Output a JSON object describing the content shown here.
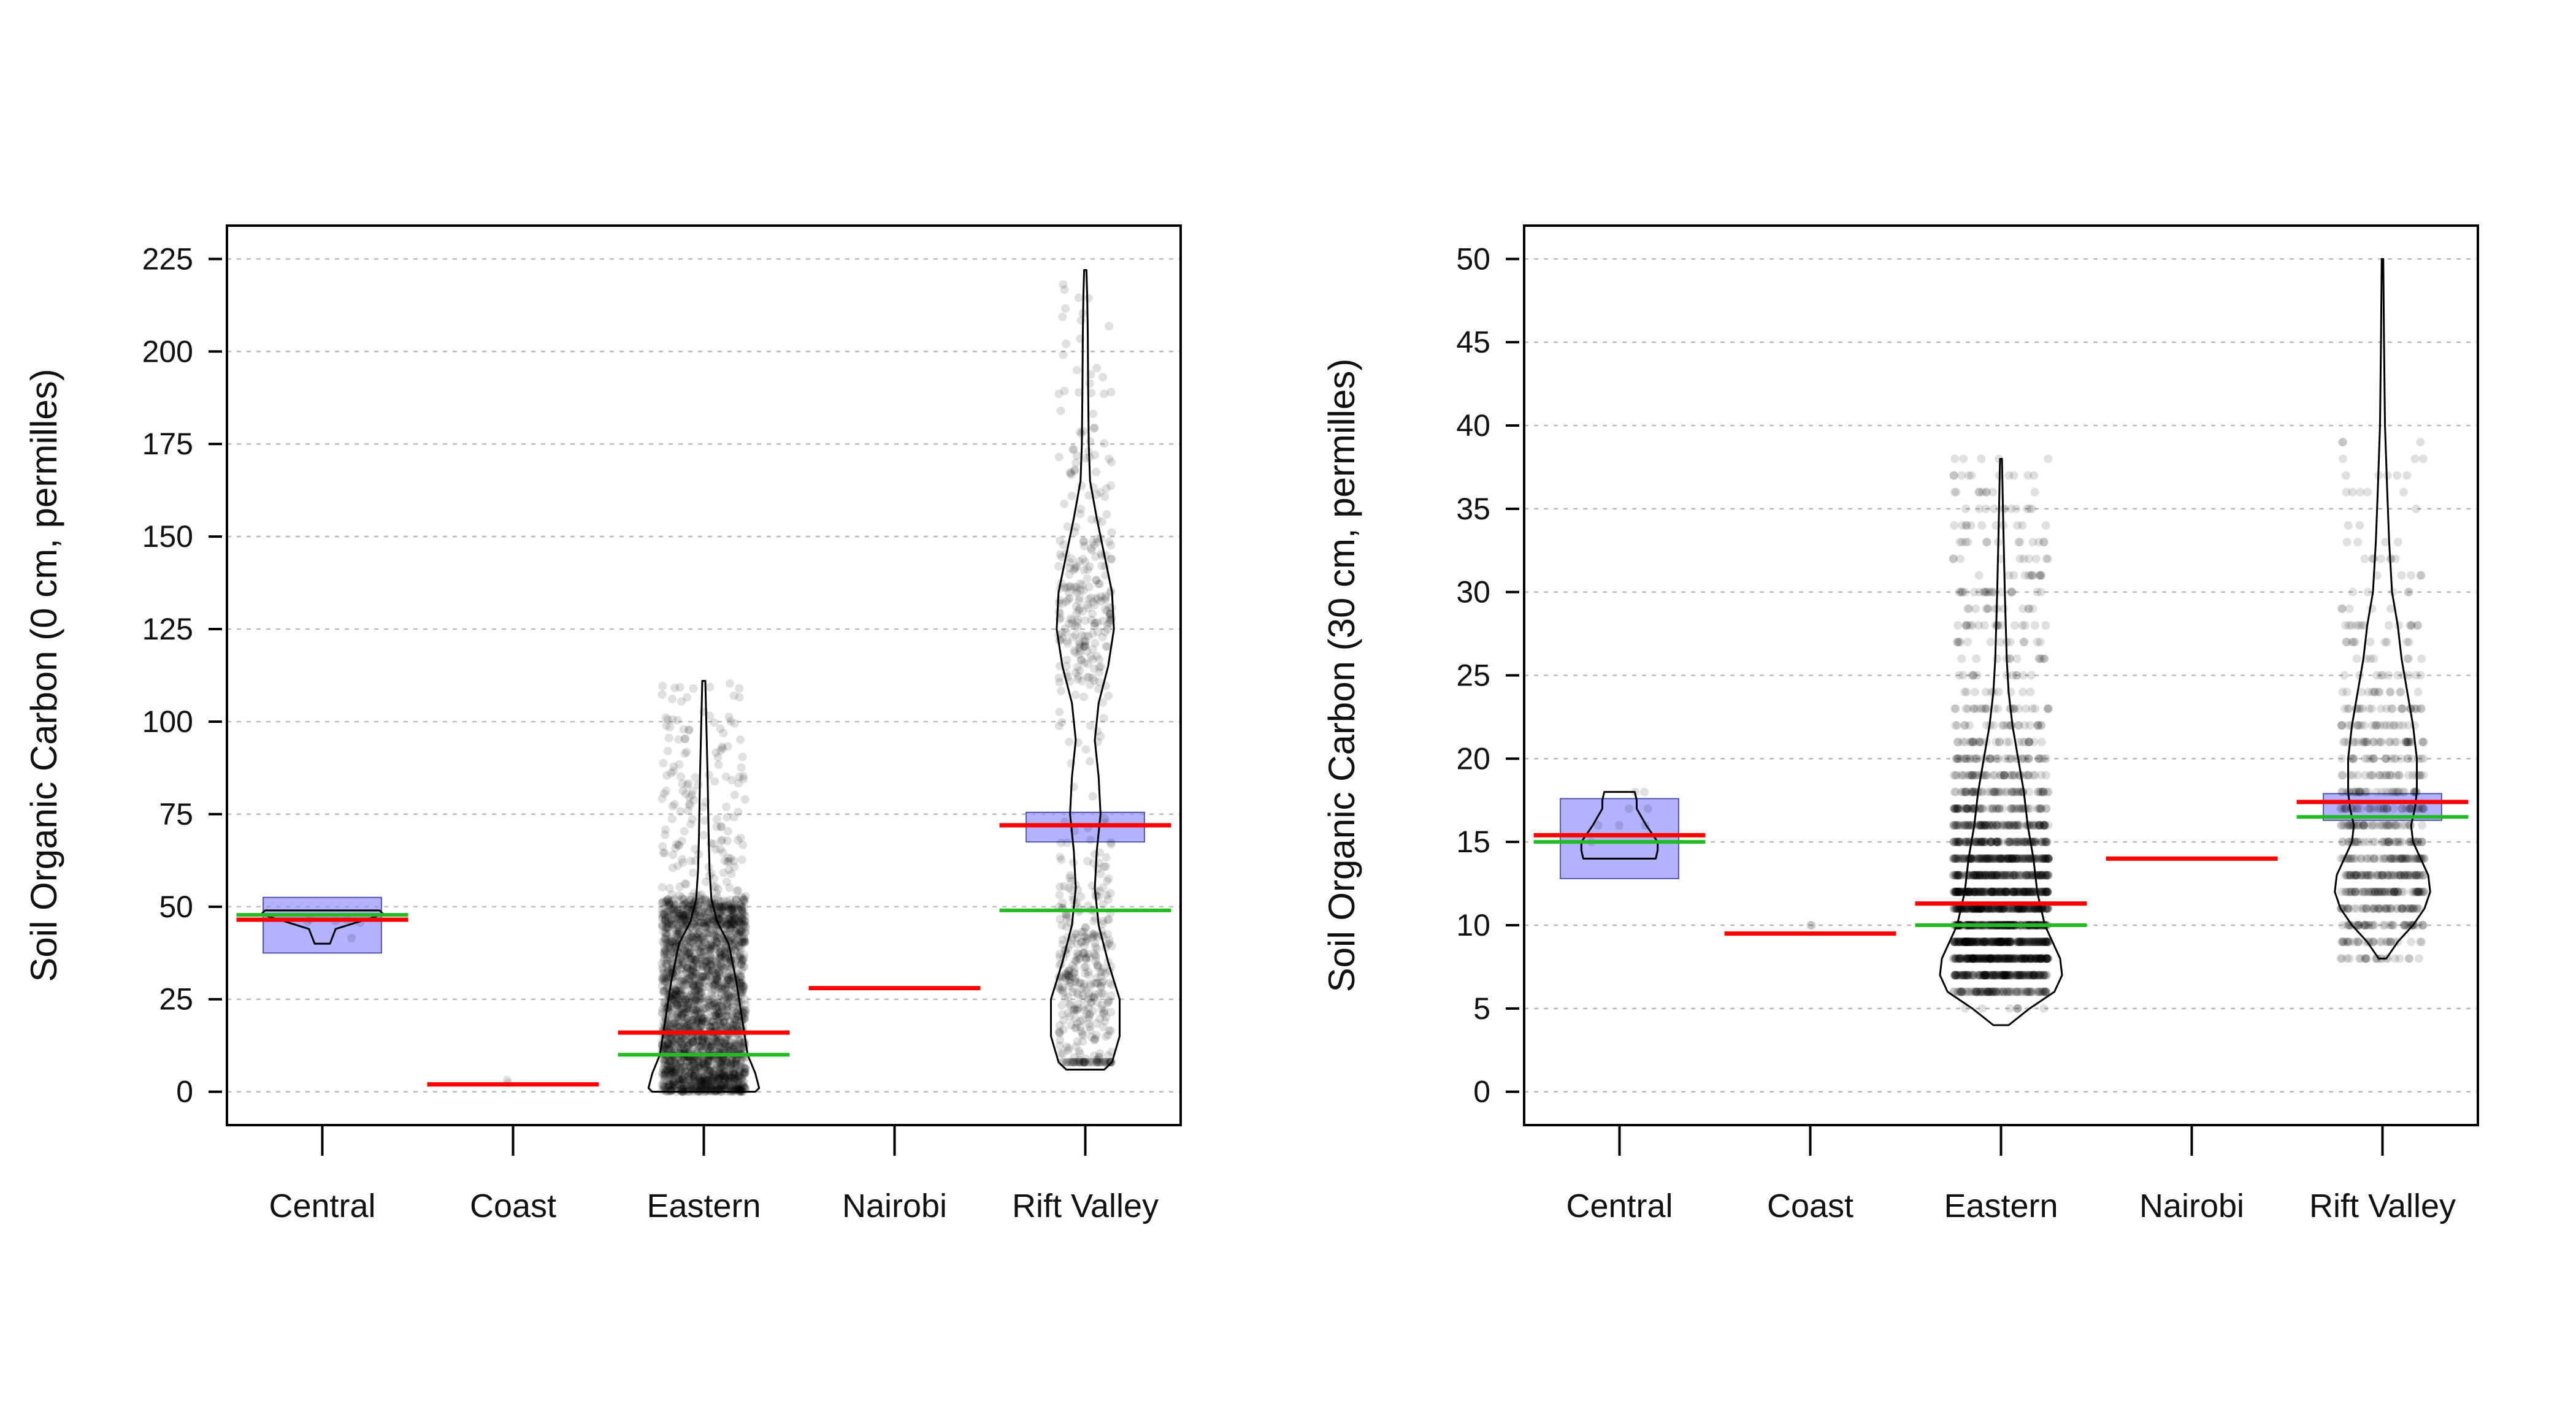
{
  "colors": {
    "mean_line": "#ff0000",
    "median_line": "#22bb22",
    "ci_box": "#8888ff",
    "points": "#000000",
    "violin_outline": "#000000",
    "grid": "#bbbbbb"
  },
  "chart_data": [
    {
      "type": "violin",
      "ylabel": "Soil Organic Carbon (0 cm, permilles)",
      "ylim": [
        -9,
        234
      ],
      "yticks": [
        0,
        25,
        50,
        75,
        100,
        125,
        150,
        175,
        200,
        225
      ],
      "grid": "horizontal dashed",
      "categories": [
        "Central",
        "Coast",
        "Eastern",
        "Nairobi",
        "Rift Valley"
      ],
      "groups": [
        {
          "category": "Central",
          "mean": 46.5,
          "median": 47.8,
          "ci": [
            37.5,
            52.5
          ],
          "violin": {
            "y": [
              40,
              44,
              48,
              49
            ],
            "halfwidth": [
              0.04,
              0.07,
              0.32,
              0.3
            ]
          },
          "points": {
            "min": 40,
            "max": 49,
            "n": 6,
            "dist": "uniform",
            "spread": 0.2
          }
        },
        {
          "category": "Coast",
          "mean": 2.0,
          "median": null,
          "ci": null,
          "violin": null,
          "points": {
            "min": 0,
            "max": 4,
            "n": 2,
            "dist": "uniform",
            "spread": 0.05
          }
        },
        {
          "category": "Eastern",
          "mean": 16.0,
          "median": 10.0,
          "ci": null,
          "violin": {
            "y": [
              0,
              1,
              5,
              10,
              20,
              30,
              40,
              46,
              52,
              60,
              70,
              85,
              111
            ],
            "halfwidth": [
              0.27,
              0.29,
              0.27,
              0.23,
              0.2,
              0.17,
              0.13,
              0.07,
              0.04,
              0.03,
              0.025,
              0.02,
              0.008
            ]
          },
          "points": {
            "min": 0,
            "max": 111,
            "n": 2600,
            "dist": "skew",
            "spread": 0.22
          }
        },
        {
          "category": "Nairobi",
          "mean": 28.0,
          "median": null,
          "ci": null,
          "violin": null,
          "points": null
        },
        {
          "category": "Rift Valley",
          "mean": 72.0,
          "median": 49.0,
          "ci": [
            67.5,
            75.5
          ],
          "violin": {
            "y": [
              6,
              8,
              15,
              25,
              35,
              45,
              55,
              65,
              75,
              85,
              95,
              105,
              115,
              125,
              135,
              145,
              155,
              165,
              175,
              190,
              205,
              215,
              222
            ],
            "halfwidth": [
              0.1,
              0.14,
              0.18,
              0.18,
              0.12,
              0.07,
              0.05,
              0.06,
              0.08,
              0.07,
              0.05,
              0.07,
              0.12,
              0.15,
              0.14,
              0.1,
              0.06,
              0.025,
              0.018,
              0.015,
              0.013,
              0.01,
              0.006
            ]
          },
          "points": {
            "min": 8,
            "max": 220,
            "n": 650,
            "dist": "mixture",
            "spread": 0.14
          }
        }
      ]
    },
    {
      "type": "violin",
      "ylabel": "Soil Organic Carbon (30 cm, permilles)",
      "ylim": [
        -2,
        52
      ],
      "yticks": [
        0,
        5,
        10,
        15,
        20,
        25,
        30,
        35,
        40,
        45,
        50
      ],
      "grid": "horizontal dashed",
      "categories": [
        "Central",
        "Coast",
        "Eastern",
        "Nairobi",
        "Rift Valley"
      ],
      "groups": [
        {
          "category": "Central",
          "mean": 15.4,
          "median": 15.0,
          "ci": [
            12.8,
            17.6
          ],
          "violin": {
            "y": [
              14,
              14.5,
              15,
              16,
              17,
              17.5,
              18
            ],
            "halfwidth": [
              0.19,
              0.2,
              0.2,
              0.14,
              0.09,
              0.09,
              0.08
            ]
          },
          "points": {
            "min": 14,
            "max": 18,
            "n": 8,
            "dist": "integer",
            "spread": 0.15
          }
        },
        {
          "category": "Coast",
          "mean": 9.5,
          "median": null,
          "ci": null,
          "violin": null,
          "points": {
            "min": 9,
            "max": 10,
            "n": 2,
            "dist": "integer",
            "spread": 0.02
          }
        },
        {
          "category": "Eastern",
          "mean": 11.3,
          "median": 10.0,
          "ci": null,
          "violin": {
            "y": [
              4,
              5,
              6,
              7,
              8,
              9,
              10,
              12,
              14,
              16,
              18,
              20,
              22,
              24,
              26,
              28,
              30,
              34,
              38
            ],
            "halfwidth": [
              0.04,
              0.15,
              0.28,
              0.32,
              0.31,
              0.27,
              0.23,
              0.19,
              0.17,
              0.14,
              0.12,
              0.09,
              0.06,
              0.04,
              0.03,
              0.025,
              0.02,
              0.012,
              0.005
            ]
          },
          "points": {
            "min": 4,
            "max": 38,
            "n": 2400,
            "dist": "integer-skew",
            "spread": 0.25
          }
        },
        {
          "category": "Nairobi",
          "mean": 14.0,
          "median": null,
          "ci": null,
          "violin": null,
          "points": null
        },
        {
          "category": "Rift Valley",
          "mean": 17.4,
          "median": 16.5,
          "ci": [
            16.3,
            17.9
          ],
          "violin": {
            "y": [
              8,
              9,
              10,
              11,
              12,
              13,
              14,
              15,
              16,
              17,
              18,
              20,
              22,
              24,
              26,
              28,
              30,
              33,
              36,
              40,
              45,
              50
            ],
            "halfwidth": [
              0.02,
              0.08,
              0.16,
              0.22,
              0.25,
              0.24,
              0.2,
              0.16,
              0.15,
              0.17,
              0.18,
              0.18,
              0.16,
              0.13,
              0.1,
              0.08,
              0.05,
              0.035,
              0.025,
              0.013,
              0.008,
              0.004
            ]
          },
          "points": {
            "min": 8,
            "max": 40,
            "n": 750,
            "dist": "integer-mix",
            "spread": 0.22
          }
        }
      ]
    }
  ]
}
